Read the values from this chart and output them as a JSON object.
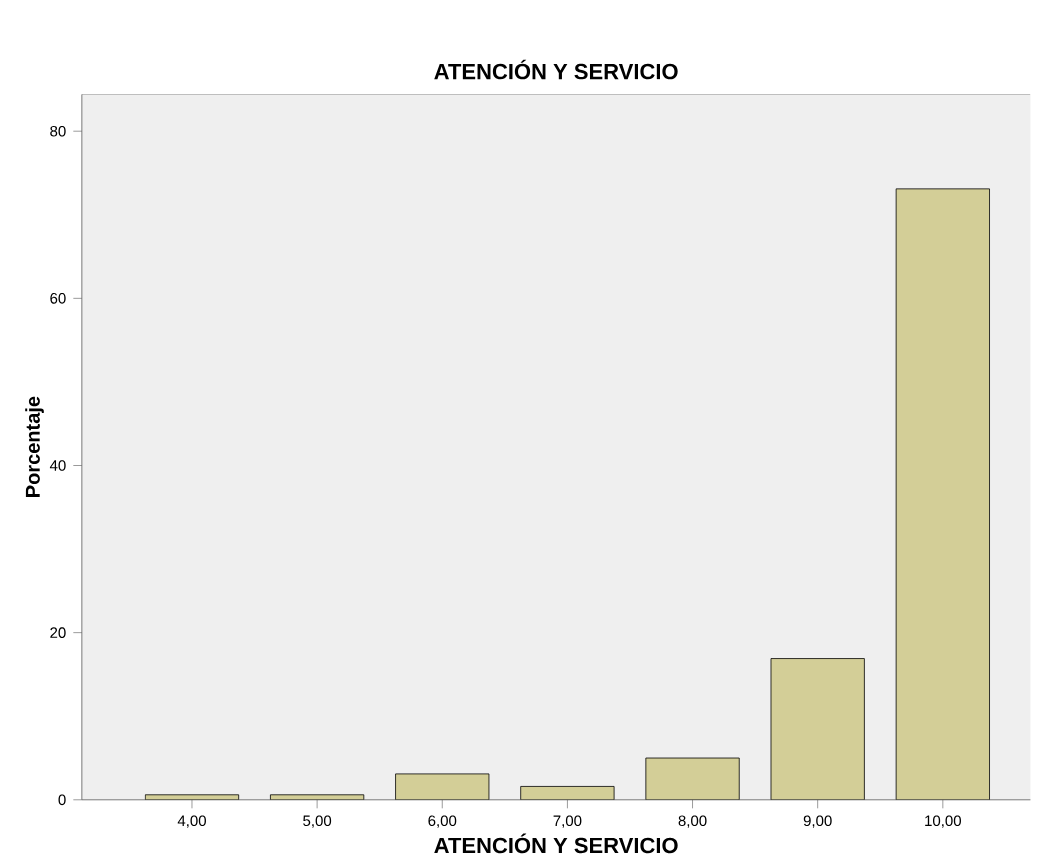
{
  "chart_data": {
    "type": "bar",
    "title": "ATENCIÓN Y SERVICIO",
    "xlabel": "ATENCIÓN Y SERVICIO",
    "ylabel": "Porcentaje",
    "categories": [
      "4,00",
      "5,00",
      "6,00",
      "7,00",
      "8,00",
      "9,00",
      "10,00"
    ],
    "values": [
      0.6,
      0.6,
      3.1,
      1.6,
      5.0,
      16.9,
      73.1
    ],
    "color": "#d3ce97",
    "ylim": [
      0,
      84.4
    ],
    "yticks": [
      0,
      20,
      40,
      60,
      80
    ],
    "grid": false
  }
}
